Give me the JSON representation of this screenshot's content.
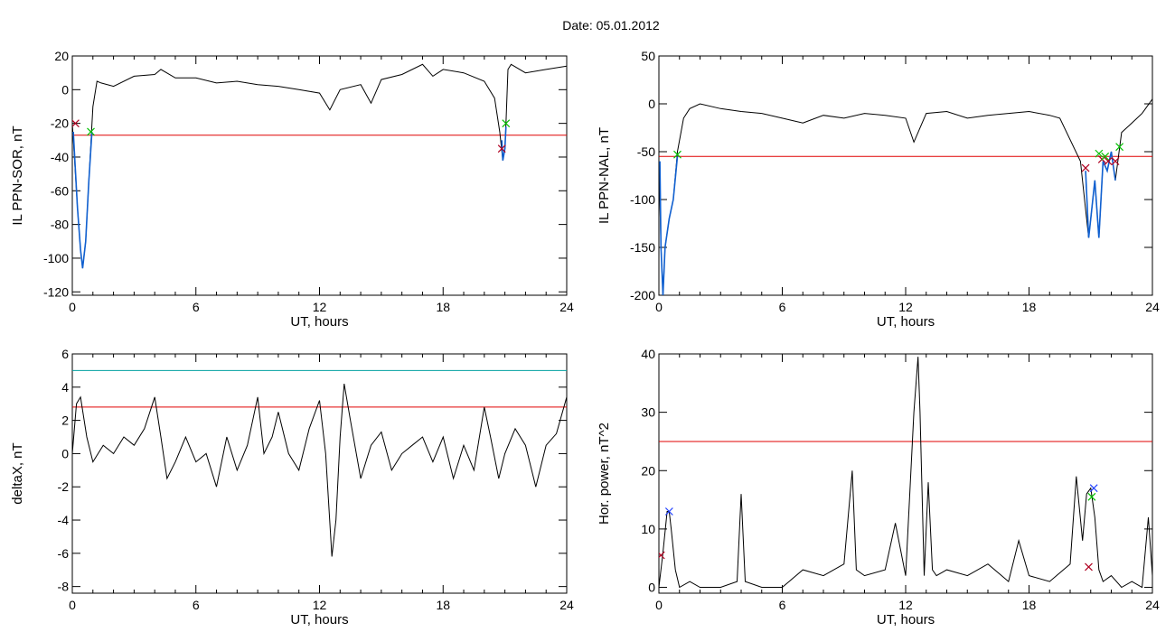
{
  "header": {
    "date_label": "Date:  05.01.2012"
  },
  "colors": {
    "trace": "#000000",
    "threshold": "#e00000",
    "secondary_threshold": "#00a0a0",
    "interval": "#1060d0",
    "start_marker": "#00c000",
    "end_marker": "#b00020",
    "power_marker": "#2040ff"
  },
  "chart_data": [
    {
      "type": "line",
      "title": "",
      "xlabel": "UT, hours",
      "ylabel": "IL PPN-SOR, nT",
      "xlim": [
        0,
        24
      ],
      "ylim": [
        -122,
        20
      ],
      "xticks": [
        "0",
        "6",
        "12",
        "18",
        "24"
      ],
      "yticks": [
        "20",
        "0",
        "-20",
        "-40",
        "-60",
        "-80",
        "-100",
        "-120"
      ],
      "series": [
        {
          "x": [
            0,
            0.1,
            0.25,
            0.4,
            0.5,
            0.65,
            0.8,
            1.0,
            1.2,
            1.4,
            2,
            3,
            4,
            4.3,
            5,
            6,
            7,
            8,
            9,
            10,
            11,
            12,
            12.5,
            13,
            14,
            14.5,
            15,
            16,
            17,
            17.5,
            18,
            19,
            20,
            20.5,
            20.75,
            20.9,
            21.0,
            21.05,
            21.15,
            21.3,
            22,
            23,
            24
          ],
          "y": [
            -20,
            -40,
            -70,
            -95,
            -106,
            -90,
            -55,
            -10,
            5,
            4,
            2,
            8,
            9,
            12,
            7,
            7,
            4,
            5,
            3,
            2,
            0,
            -2,
            -12,
            0,
            3,
            -8,
            6,
            9,
            15,
            8,
            12,
            10,
            5,
            -5,
            -25,
            -42,
            -35,
            -20,
            12,
            15,
            10,
            12,
            14
          ]
        }
      ],
      "thresholds": [
        {
          "y": -27,
          "color": "#e00000"
        }
      ],
      "highlight_segments": [
        {
          "x": [
            0.05,
            0.25,
            0.4,
            0.5,
            0.65,
            0.8,
            0.95
          ],
          "y": [
            -25,
            -70,
            -95,
            -106,
            -90,
            -55,
            -25
          ]
        },
        {
          "x": [
            20.85,
            20.9,
            21.0,
            21.05
          ],
          "y": [
            -30,
            -42,
            -35,
            -22
          ]
        }
      ],
      "markers": [
        {
          "x": 0.15,
          "y": -20,
          "shape": "x",
          "color": "#b00020"
        },
        {
          "x": 0.9,
          "y": -25,
          "shape": "x",
          "color": "#00c000"
        },
        {
          "x": 20.85,
          "y": -35,
          "shape": "x",
          "color": "#b00020"
        },
        {
          "x": 21.05,
          "y": -20,
          "shape": "x",
          "color": "#00c000"
        }
      ]
    },
    {
      "type": "line",
      "title": "",
      "xlabel": "UT, hours",
      "ylabel": "IL PPN-NAL, nT",
      "xlim": [
        0,
        24
      ],
      "ylim": [
        -200,
        50
      ],
      "xticks": [
        "0",
        "6",
        "12",
        "18",
        "24"
      ],
      "yticks": [
        "50",
        "0",
        "-50",
        "-100",
        "-150",
        "-200"
      ],
      "series": [
        {
          "x": [
            0,
            0.1,
            0.2,
            0.3,
            0.5,
            0.7,
            0.9,
            1.2,
            1.5,
            2,
            3,
            4,
            5,
            6,
            7,
            8,
            9,
            10,
            11,
            12,
            12.4,
            13,
            14,
            15,
            16,
            17,
            18,
            19,
            19.5,
            20.5,
            20.7,
            20.9,
            21.0,
            21.2,
            21.4,
            21.6,
            21.8,
            22.0,
            22.2,
            22.5,
            23,
            23.5,
            24
          ],
          "y": [
            -60,
            -150,
            -200,
            -150,
            -120,
            -100,
            -50,
            -15,
            -5,
            0,
            -5,
            -8,
            -10,
            -15,
            -20,
            -12,
            -15,
            -10,
            -12,
            -15,
            -40,
            -10,
            -8,
            -15,
            -12,
            -10,
            -8,
            -12,
            -15,
            -60,
            -100,
            -140,
            -120,
            -80,
            -140,
            -60,
            -70,
            -50,
            -80,
            -30,
            -20,
            -10,
            5
          ]
        }
      ],
      "thresholds": [
        {
          "y": -55,
          "color": "#e00000"
        }
      ],
      "highlight_segments": [
        {
          "x": [
            0.05,
            0.1,
            0.2,
            0.3,
            0.5,
            0.7,
            0.9
          ],
          "y": [
            -60,
            -150,
            -200,
            -150,
            -120,
            -100,
            -55
          ]
        },
        {
          "x": [
            20.75,
            20.9,
            21.0,
            21.2,
            21.4,
            21.6,
            21.8,
            22.0,
            22.2
          ],
          "y": [
            -70,
            -140,
            -120,
            -80,
            -140,
            -60,
            -70,
            -50,
            -80
          ]
        }
      ],
      "markers": [
        {
          "x": 0.9,
          "y": -53,
          "shape": "x",
          "color": "#00c000"
        },
        {
          "x": 20.75,
          "y": -67,
          "shape": "x",
          "color": "#b00020"
        },
        {
          "x": 21.4,
          "y": -52,
          "shape": "x",
          "color": "#00c000"
        },
        {
          "x": 21.55,
          "y": -58,
          "shape": "x",
          "color": "#b00020"
        },
        {
          "x": 21.7,
          "y": -55,
          "shape": "x",
          "color": "#00c000"
        },
        {
          "x": 21.85,
          "y": -60,
          "shape": "x",
          "color": "#b00020"
        },
        {
          "x": 22.2,
          "y": -60,
          "shape": "x",
          "color": "#b00020"
        },
        {
          "x": 22.4,
          "y": -45,
          "shape": "x",
          "color": "#00c000"
        }
      ]
    },
    {
      "type": "line",
      "title": "",
      "xlabel": "UT, hours",
      "ylabel": "deltaX, nT",
      "xlim": [
        0,
        24
      ],
      "ylim": [
        -8.4,
        6
      ],
      "xticks": [
        "0",
        "6",
        "12",
        "18",
        "24"
      ],
      "yticks": [
        "6",
        "4",
        "2",
        "0",
        "-2",
        "-4",
        "-6",
        "-8"
      ],
      "series": [
        {
          "x": [
            0,
            0.2,
            0.4,
            0.7,
            1,
            1.5,
            2,
            2.5,
            3,
            3.5,
            4,
            4.3,
            4.6,
            5,
            5.5,
            6,
            6.5,
            7,
            7.5,
            8,
            8.5,
            9,
            9.3,
            9.7,
            10,
            10.5,
            11,
            11.5,
            12,
            12.3,
            12.6,
            12.8,
            13,
            13.2,
            13.5,
            14,
            14.5,
            15,
            15.5,
            16,
            16.5,
            17,
            17.5,
            18,
            18.5,
            19,
            19.5,
            20,
            20.3,
            20.7,
            21,
            21.5,
            22,
            22.5,
            23,
            23.5,
            24
          ],
          "y": [
            0,
            3,
            3.4,
            1,
            -0.5,
            0.5,
            0,
            1,
            0.5,
            1.5,
            3.4,
            1,
            -1.5,
            -0.5,
            1,
            -0.5,
            0,
            -2,
            1,
            -1,
            0.5,
            3.4,
            0,
            1,
            2.5,
            0,
            -1,
            1.5,
            3.2,
            0,
            -6.2,
            -4,
            1,
            4.2,
            2,
            -1.5,
            0.5,
            1.3,
            -1,
            0,
            0.5,
            1,
            -0.5,
            1,
            -1.5,
            0.5,
            -1,
            2.8,
            1,
            -1.5,
            0,
            1.5,
            0.5,
            -2,
            0.5,
            1.2,
            3.4
          ]
        }
      ],
      "thresholds": [
        {
          "y": 5,
          "color": "#00a0a0"
        },
        {
          "y": 2.8,
          "color": "#e00000"
        }
      ],
      "highlight_segments": [],
      "markers": []
    },
    {
      "type": "line",
      "title": "",
      "xlabel": "UT, hours",
      "ylabel": "Hor. power, nT^2",
      "xlim": [
        0,
        24
      ],
      "ylim": [
        -1,
        40
      ],
      "xticks": [
        "0",
        "6",
        "12",
        "18",
        "24"
      ],
      "yticks": [
        "40",
        "30",
        "20",
        "10",
        "0"
      ],
      "series": [
        {
          "x": [
            0,
            0.2,
            0.4,
            0.5,
            0.6,
            0.8,
            1.0,
            1.5,
            2,
            3,
            3.8,
            4.0,
            4.2,
            5,
            6,
            7,
            8,
            9,
            9.4,
            9.6,
            10,
            11,
            11.5,
            12,
            12.4,
            12.6,
            12.7,
            12.9,
            13.1,
            13.3,
            13.5,
            14,
            15,
            16,
            17,
            17.5,
            18,
            19,
            20,
            20.3,
            20.6,
            20.8,
            21.0,
            21.2,
            21.4,
            21.6,
            22,
            22.5,
            23,
            23.5,
            23.8,
            24
          ],
          "y": [
            0,
            6,
            13,
            13,
            10,
            3,
            0,
            1,
            0,
            0,
            1,
            16,
            1,
            0,
            0,
            3,
            2,
            4,
            20,
            3,
            2,
            3,
            11,
            2,
            30,
            39.5,
            30,
            2,
            18,
            3,
            2,
            3,
            2,
            4,
            1,
            8,
            2,
            1,
            4,
            19,
            8,
            16,
            17,
            12,
            3,
            1,
            2,
            0,
            1,
            0,
            12,
            2
          ]
        }
      ],
      "thresholds": [
        {
          "y": 25,
          "color": "#e00000"
        }
      ],
      "highlight_segments": [],
      "markers": [
        {
          "x": 0.1,
          "y": 5.5,
          "shape": "x",
          "color": "#b00020"
        },
        {
          "x": 0.5,
          "y": 13,
          "shape": "x",
          "color": "#2040ff"
        },
        {
          "x": 20.9,
          "y": 3.5,
          "shape": "x",
          "color": "#b00020"
        },
        {
          "x": 21.05,
          "y": 15.5,
          "shape": "x",
          "color": "#00c000"
        },
        {
          "x": 21.15,
          "y": 17,
          "shape": "x",
          "color": "#2040ff"
        }
      ]
    }
  ]
}
